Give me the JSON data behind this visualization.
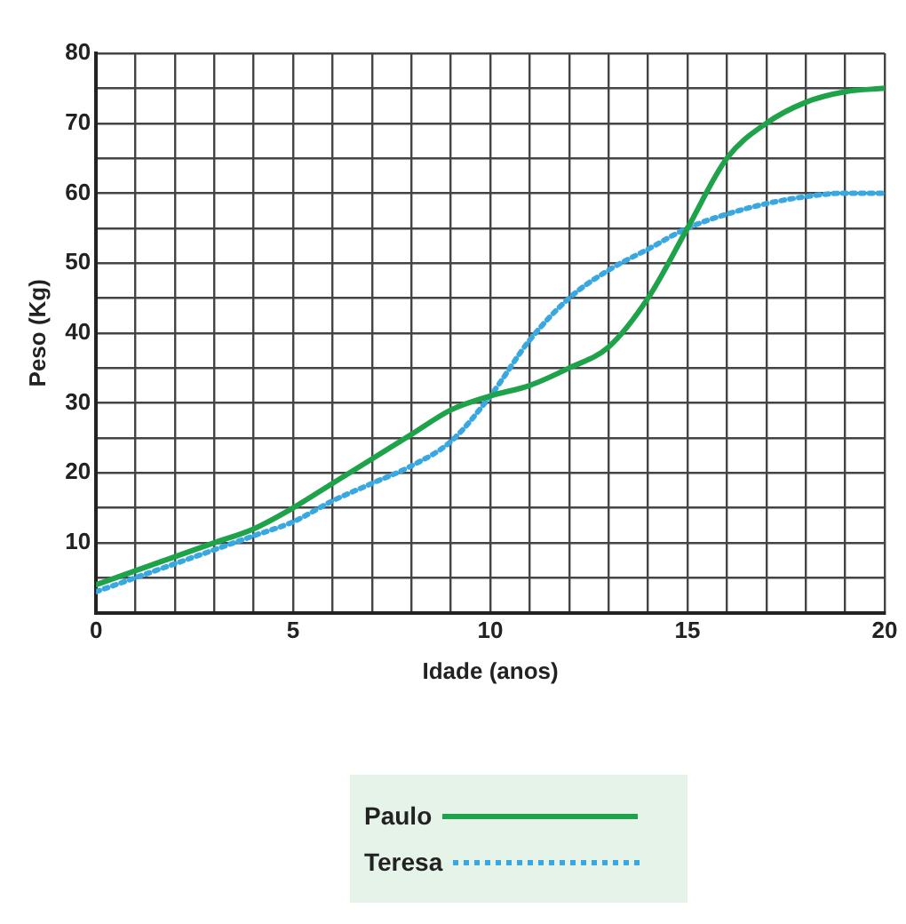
{
  "chart_data": {
    "type": "line",
    "xlabel": "Idade (anos)",
    "ylabel": "Peso (Kg)",
    "x": [
      0,
      1,
      2,
      3,
      4,
      5,
      6,
      7,
      8,
      9,
      10,
      11,
      12,
      13,
      14,
      15,
      16,
      17,
      18,
      19,
      20
    ],
    "series": [
      {
        "name": "Paulo",
        "color": "#1fa34a",
        "line_style": "solid",
        "values": [
          4,
          6,
          8,
          10,
          12,
          15,
          18.5,
          22,
          25.5,
          29,
          31,
          32.5,
          35,
          38,
          45,
          55,
          65,
          70,
          73,
          74.5,
          75
        ]
      },
      {
        "name": "Teresa",
        "color": "#3aa8e0",
        "line_style": "dotted",
        "values": [
          3,
          5,
          7,
          9,
          11,
          13,
          16,
          18.5,
          21,
          24.5,
          31,
          39,
          45,
          49,
          52,
          55,
          57,
          58.5,
          59.5,
          60,
          60
        ]
      }
    ],
    "xlim": [
      0,
      20
    ],
    "ylim": [
      0,
      80
    ],
    "xticks": [
      0,
      {
        "value": 1,
        "label": null
      },
      {
        "value": 2,
        "label": null
      },
      {
        "value": 3,
        "label": null
      },
      {
        "value": 4,
        "label": null
      },
      5,
      {
        "value": 6,
        "label": null
      },
      {
        "value": 7,
        "label": null
      },
      {
        "value": 8,
        "label": null
      },
      {
        "value": 9,
        "label": null
      },
      10,
      {
        "value": 11,
        "label": null
      },
      {
        "value": 12,
        "label": null
      },
      {
        "value": 13,
        "label": null
      },
      {
        "value": 14,
        "label": null
      },
      15,
      {
        "value": 16,
        "label": null
      },
      {
        "value": 17,
        "label": null
      },
      {
        "value": 18,
        "label": null
      },
      {
        "value": 19,
        "label": null
      },
      20
    ],
    "yticks": [
      {
        "value": 0,
        "label": null
      },
      {
        "value": 5,
        "label": null
      },
      10,
      {
        "value": 15,
        "label": null
      },
      20,
      {
        "value": 25,
        "label": null
      },
      30,
      {
        "value": 35,
        "label": null
      },
      40,
      {
        "value": 45,
        "label": null
      },
      50,
      {
        "value": 55,
        "label": null
      },
      60,
      {
        "value": 65,
        "label": null
      },
      70,
      {
        "value": 75,
        "label": null
      },
      80
    ],
    "grid": true,
    "legend": "bottom",
    "marker": "none"
  }
}
